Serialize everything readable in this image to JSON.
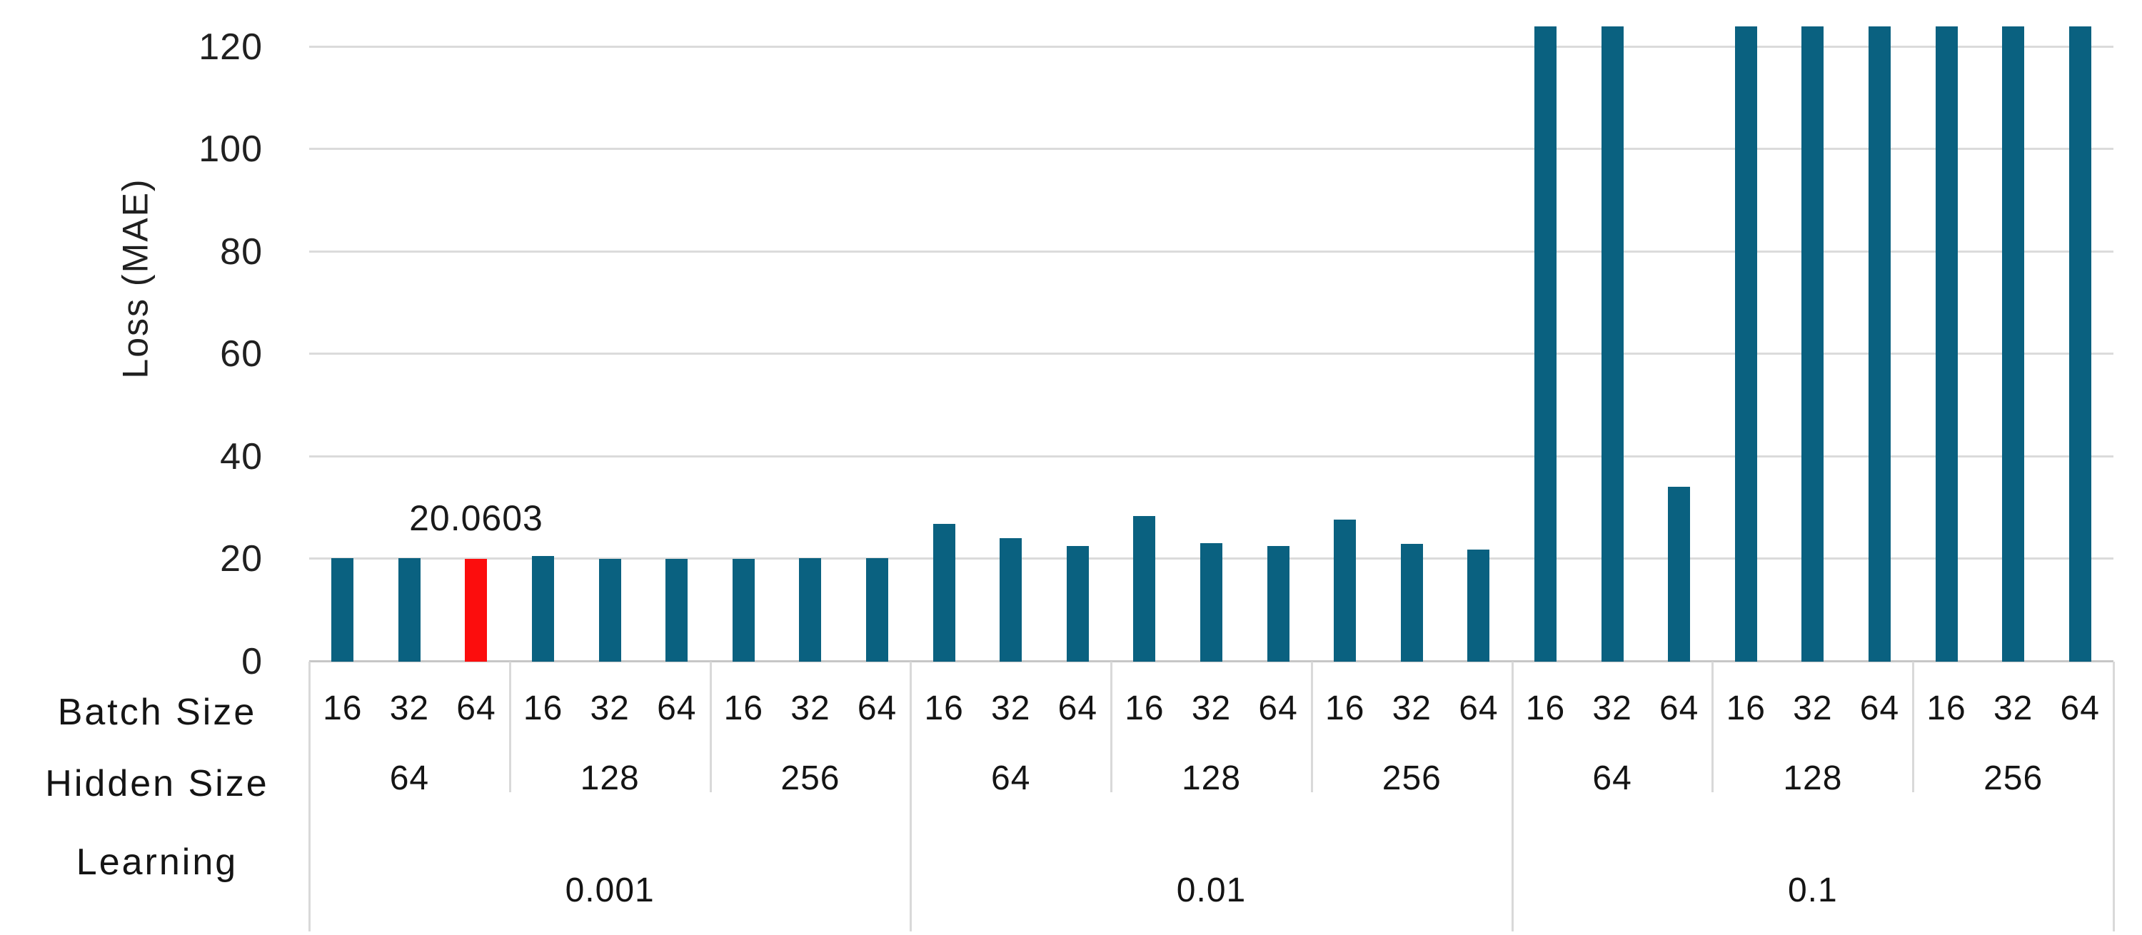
{
  "colors": {
    "bar": "#0a6180",
    "highlight": "#fc0d0d",
    "gridline": "#dbdbdb",
    "baseline": "#c6c6c6",
    "separator": "#d9d9d9",
    "text": "#1e1e1e"
  },
  "y_axis": {
    "title": "Loss (MAE)",
    "ticks": [
      0,
      20,
      40,
      60,
      80,
      100,
      120
    ]
  },
  "row_headers": {
    "batch": "Batch Size",
    "hidden": "Hidden Size",
    "learning": "Learning"
  },
  "annotation": {
    "text": "20.0603"
  },
  "chart_data": {
    "type": "bar",
    "title": "",
    "xlabel": "",
    "ylabel": "Loss (MAE)",
    "ylim": [
      0,
      124
    ],
    "y_ticks": [
      0,
      20,
      40,
      60,
      80,
      100,
      120
    ],
    "grid": true,
    "legend": "none",
    "x_hierarchy_rows": [
      "Batch Size",
      "Hidden Size",
      "Learning"
    ],
    "groups": [
      {
        "learning": "0.001",
        "cells": [
          {
            "hidden": "64",
            "bars": [
              {
                "batch": "16",
                "value": 20.2,
                "clipped": false,
                "highlight": false,
                "annotated": false
              },
              {
                "batch": "32",
                "value": 20.2,
                "clipped": false,
                "highlight": false,
                "annotated": false
              },
              {
                "batch": "64",
                "value": 20.0603,
                "clipped": false,
                "highlight": true,
                "annotated": true
              }
            ]
          },
          {
            "hidden": "128",
            "bars": [
              {
                "batch": "16",
                "value": 20.6,
                "clipped": false,
                "highlight": false,
                "annotated": false
              },
              {
                "batch": "32",
                "value": 20.0,
                "clipped": false,
                "highlight": false,
                "annotated": false
              },
              {
                "batch": "64",
                "value": 20.1,
                "clipped": false,
                "highlight": false,
                "annotated": false
              }
            ]
          },
          {
            "hidden": "256",
            "bars": [
              {
                "batch": "16",
                "value": 20.1,
                "clipped": false,
                "highlight": false,
                "annotated": false
              },
              {
                "batch": "32",
                "value": 20.2,
                "clipped": false,
                "highlight": false,
                "annotated": false
              },
              {
                "batch": "64",
                "value": 20.2,
                "clipped": false,
                "highlight": false,
                "annotated": false
              }
            ]
          }
        ]
      },
      {
        "learning": "0.01",
        "cells": [
          {
            "hidden": "64",
            "bars": [
              {
                "batch": "16",
                "value": 26.9,
                "clipped": false,
                "highlight": false,
                "annotated": false
              },
              {
                "batch": "32",
                "value": 24.1,
                "clipped": false,
                "highlight": false,
                "annotated": false
              },
              {
                "batch": "64",
                "value": 22.6,
                "clipped": false,
                "highlight": false,
                "annotated": false
              }
            ]
          },
          {
            "hidden": "128",
            "bars": [
              {
                "batch": "16",
                "value": 28.4,
                "clipped": false,
                "highlight": false,
                "annotated": false
              },
              {
                "batch": "32",
                "value": 23.1,
                "clipped": false,
                "highlight": false,
                "annotated": false
              },
              {
                "batch": "64",
                "value": 22.6,
                "clipped": false,
                "highlight": false,
                "annotated": false
              }
            ]
          },
          {
            "hidden": "256",
            "bars": [
              {
                "batch": "16",
                "value": 27.7,
                "clipped": false,
                "highlight": false,
                "annotated": false
              },
              {
                "batch": "32",
                "value": 23.0,
                "clipped": false,
                "highlight": false,
                "annotated": false
              },
              {
                "batch": "64",
                "value": 21.9,
                "clipped": false,
                "highlight": false,
                "annotated": false
              }
            ]
          }
        ]
      },
      {
        "learning": "0.1",
        "cells": [
          {
            "hidden": "64",
            "bars": [
              {
                "batch": "16",
                "value": 124,
                "clipped": true,
                "highlight": false,
                "annotated": false
              },
              {
                "batch": "32",
                "value": 124,
                "clipped": true,
                "highlight": false,
                "annotated": false
              },
              {
                "batch": "64",
                "value": 34.2,
                "clipped": false,
                "highlight": false,
                "annotated": false
              }
            ]
          },
          {
            "hidden": "128",
            "bars": [
              {
                "batch": "16",
                "value": 124,
                "clipped": true,
                "highlight": false,
                "annotated": false
              },
              {
                "batch": "32",
                "value": 124,
                "clipped": true,
                "highlight": false,
                "annotated": false
              },
              {
                "batch": "64",
                "value": 124,
                "clipped": true,
                "highlight": false,
                "annotated": false
              }
            ]
          },
          {
            "hidden": "256",
            "bars": [
              {
                "batch": "16",
                "value": 124,
                "clipped": true,
                "highlight": false,
                "annotated": false
              },
              {
                "batch": "32",
                "value": 124,
                "clipped": true,
                "highlight": false,
                "annotated": false
              },
              {
                "batch": "64",
                "value": 124,
                "clipped": true,
                "highlight": false,
                "annotated": false
              }
            ]
          }
        ]
      }
    ]
  }
}
